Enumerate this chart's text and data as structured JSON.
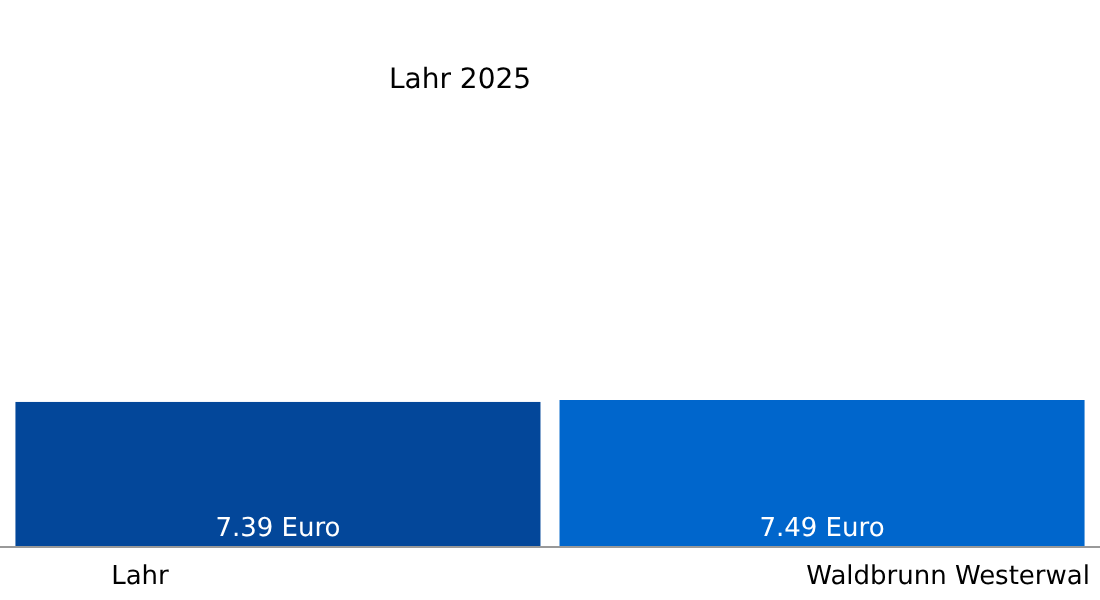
{
  "chart_data": {
    "type": "bar",
    "title": "Lahr 2025",
    "categories": [
      "Lahr",
      "Waldbrunn Westerwal"
    ],
    "values": [
      7.39,
      7.49
    ],
    "colors": [
      "#03479a",
      "#0066cc"
    ],
    "value_labels": [
      "7.39 Euro",
      "7.49 Euro"
    ]
  }
}
